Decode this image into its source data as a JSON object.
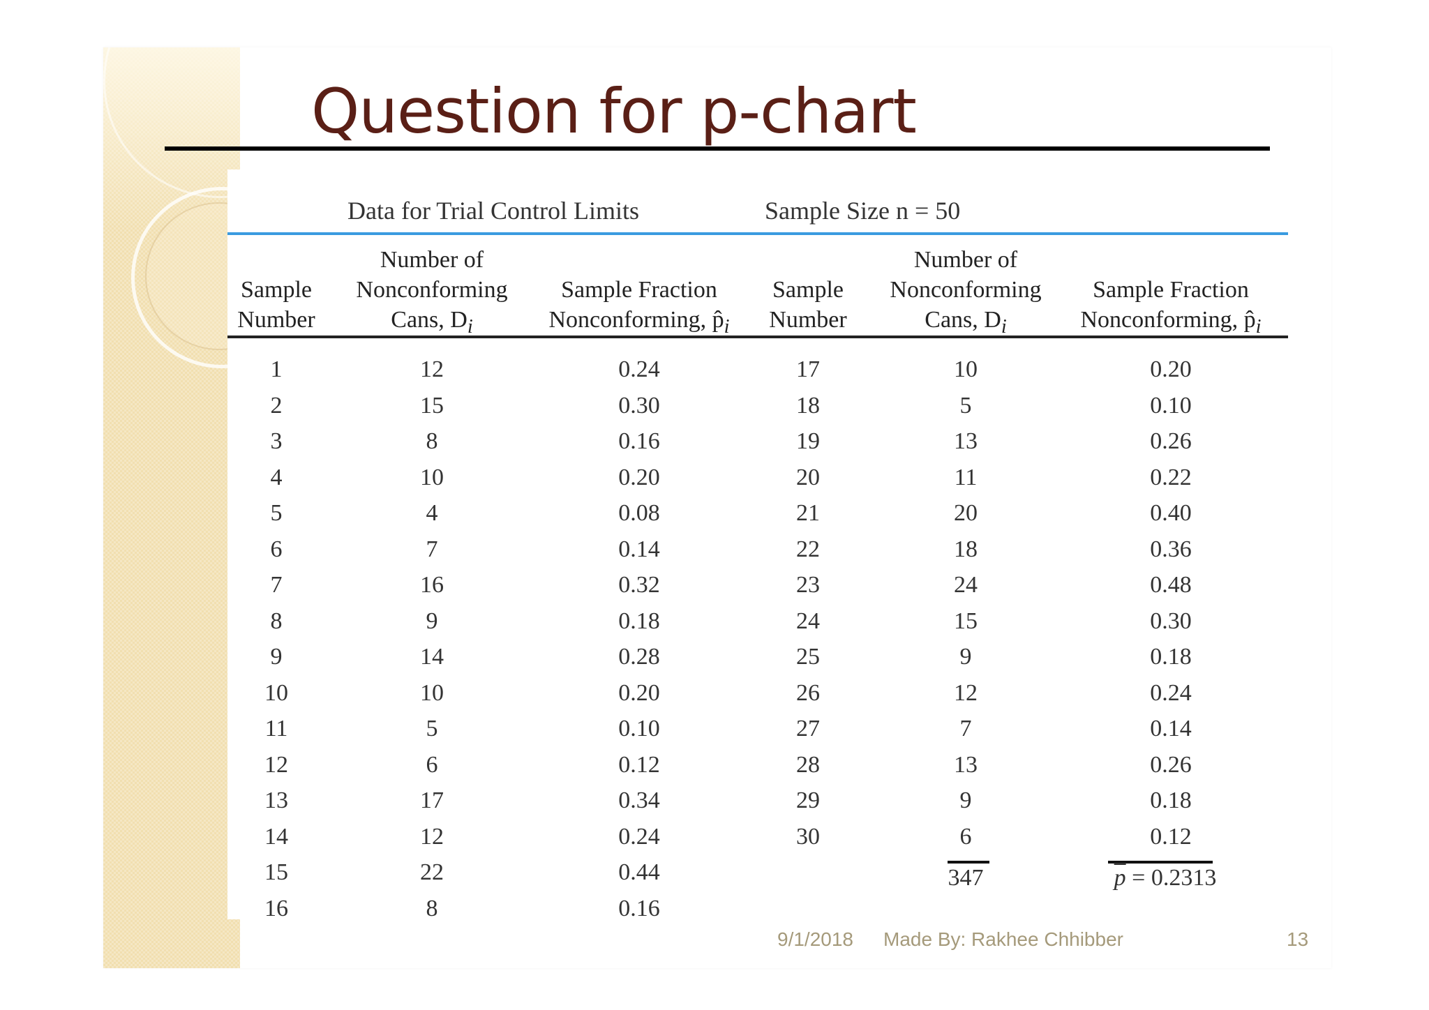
{
  "slide": {
    "title": "Question for p-chart",
    "footer": {
      "date": "9/1/2018",
      "author": "Made By: Rakhee Chhibber",
      "page": "13"
    }
  },
  "table": {
    "caption_left": "Data for Trial Control Limits",
    "caption_right": "Sample Size n = 50",
    "columns": {
      "sample_number": [
        "Sample",
        "Number"
      ],
      "nonconforming": [
        "Number of",
        "Nonconforming",
        "Cans, D"
      ],
      "fraction": [
        "Sample Fraction",
        "Nonconforming, p"
      ],
      "subscript_i": "i"
    },
    "left_rows": [
      [
        "1",
        "12",
        "0.24"
      ],
      [
        "2",
        "15",
        "0.30"
      ],
      [
        "3",
        "8",
        "0.16"
      ],
      [
        "4",
        "10",
        "0.20"
      ],
      [
        "5",
        "4",
        "0.08"
      ],
      [
        "6",
        "7",
        "0.14"
      ],
      [
        "7",
        "16",
        "0.32"
      ],
      [
        "8",
        "9",
        "0.18"
      ],
      [
        "9",
        "14",
        "0.28"
      ],
      [
        "10",
        "10",
        "0.20"
      ],
      [
        "11",
        "5",
        "0.10"
      ],
      [
        "12",
        "6",
        "0.12"
      ],
      [
        "13",
        "17",
        "0.34"
      ],
      [
        "14",
        "12",
        "0.24"
      ],
      [
        "15",
        "22",
        "0.44"
      ],
      [
        "16",
        "8",
        "0.16"
      ]
    ],
    "right_rows": [
      [
        "17",
        "10",
        "0.20"
      ],
      [
        "18",
        "5",
        "0.10"
      ],
      [
        "19",
        "13",
        "0.26"
      ],
      [
        "20",
        "11",
        "0.22"
      ],
      [
        "21",
        "20",
        "0.40"
      ],
      [
        "22",
        "18",
        "0.36"
      ],
      [
        "23",
        "24",
        "0.48"
      ],
      [
        "24",
        "15",
        "0.30"
      ],
      [
        "25",
        "9",
        "0.18"
      ],
      [
        "26",
        "12",
        "0.24"
      ],
      [
        "27",
        "7",
        "0.14"
      ],
      [
        "28",
        "13",
        "0.26"
      ],
      [
        "29",
        "9",
        "0.18"
      ],
      [
        "30",
        "6",
        "0.12"
      ]
    ],
    "total_nonconforming": "347",
    "p_bar_symbol": "p",
    "p_bar_value": "= 0.2313"
  }
}
